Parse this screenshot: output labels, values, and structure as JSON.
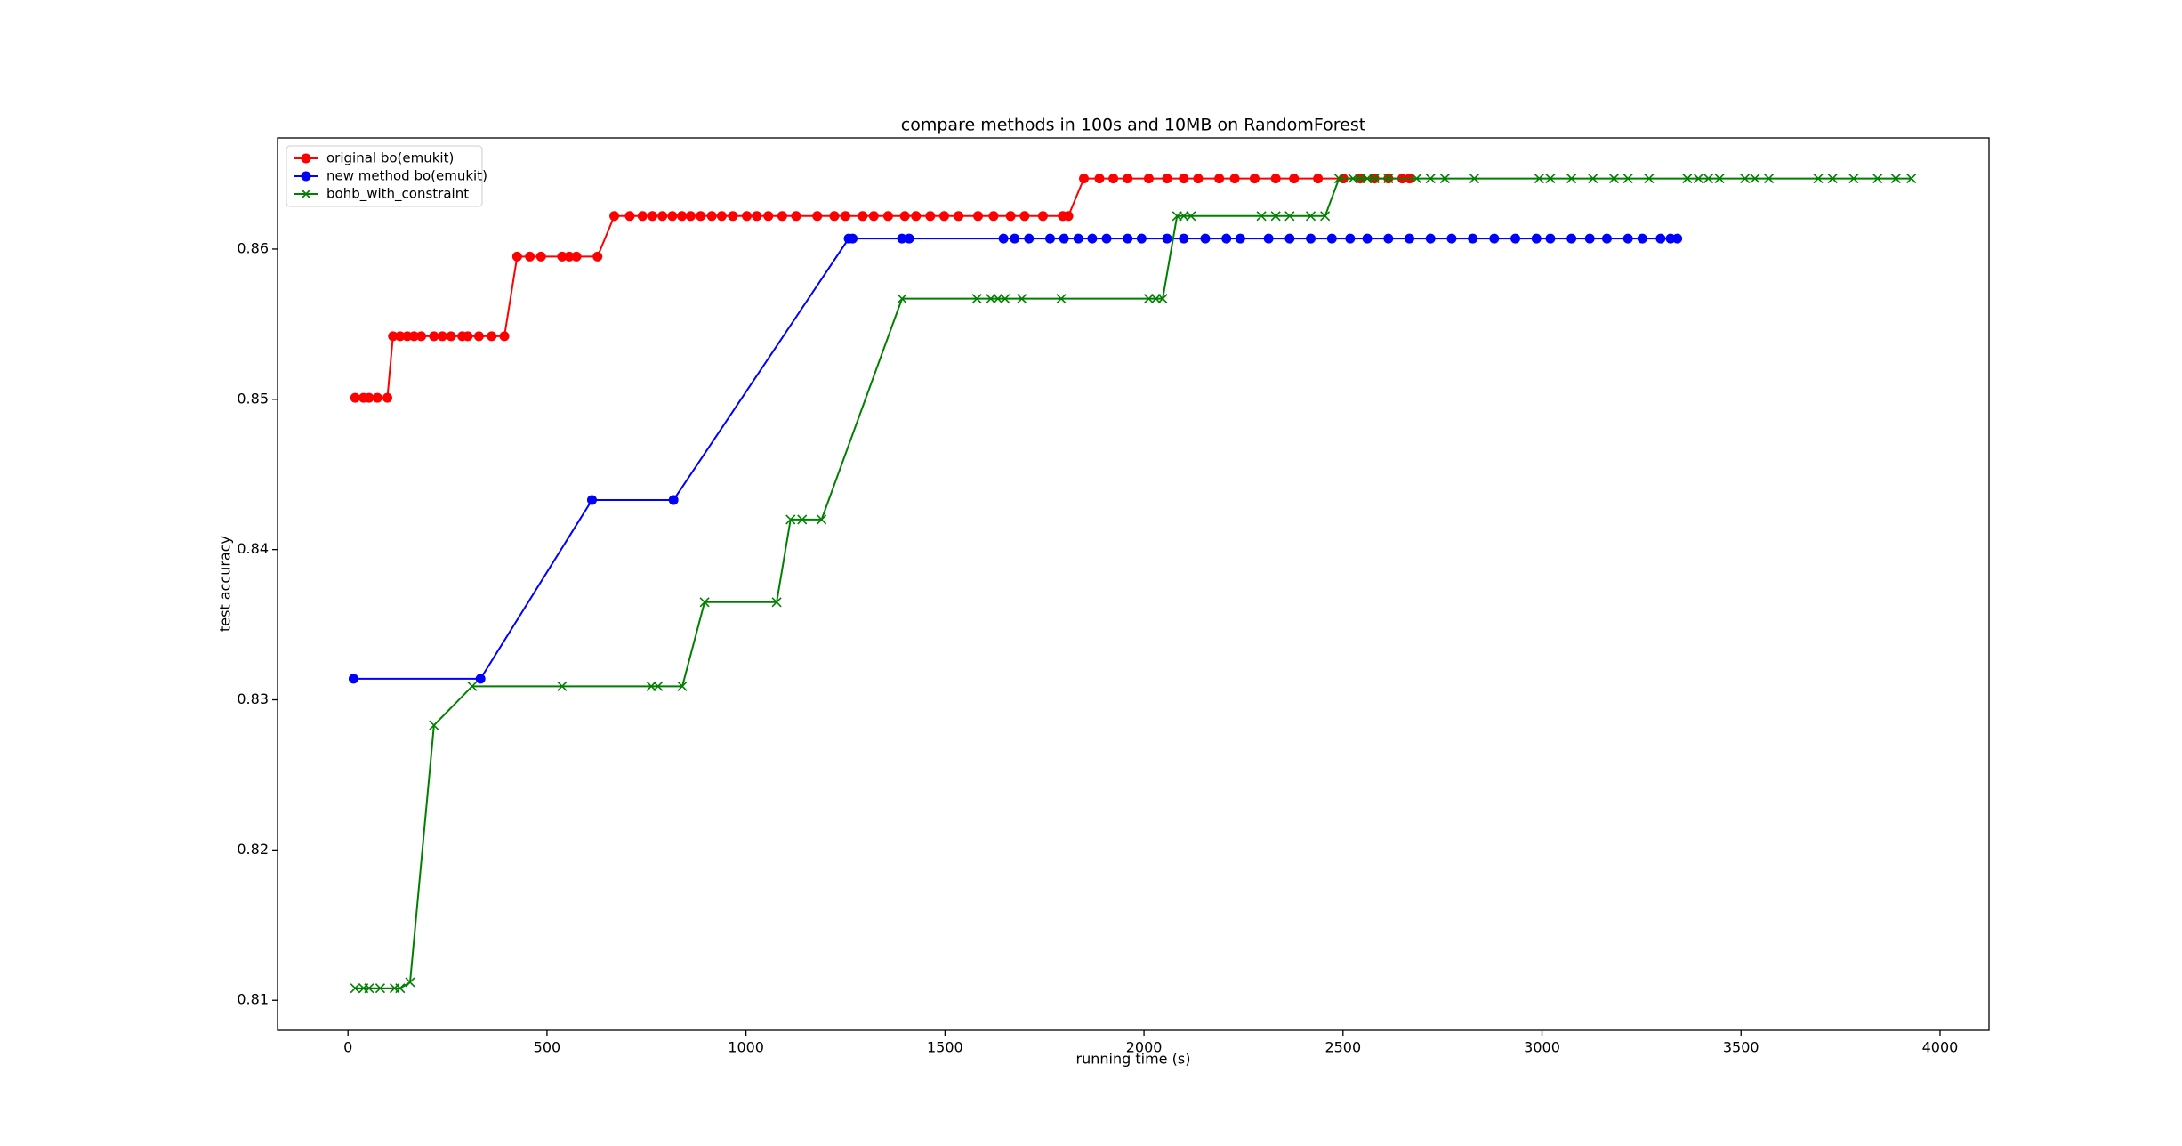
{
  "chart_data": {
    "type": "line",
    "title": "compare methods in 100s and 10MB on RandomForest",
    "xlabel": "running time (s)",
    "ylabel": "test accuracy",
    "xlim": [
      -177,
      4123
    ],
    "xticks": [
      0,
      500,
      1000,
      1500,
      2000,
      2500,
      3000,
      3500,
      4000
    ],
    "ylim": [
      0.808,
      0.8674
    ],
    "yticks": [
      0.81,
      0.82,
      0.83,
      0.84,
      0.85,
      0.86
    ],
    "legend": "upper left",
    "series": [
      {
        "name": "original bo(emukit)",
        "color": "#ff0000",
        "marker": "circle",
        "x": [
          18,
          39,
          53,
          74,
          99,
          113,
          131,
          149,
          166,
          184,
          216,
          237,
          259,
          287,
          301,
          329,
          361,
          393,
          425,
          457,
          485,
          538,
          556,
          574,
          627,
          669,
          708,
          740,
          765,
          790,
          815,
          839,
          861,
          886,
          914,
          939,
          967,
          1002,
          1027,
          1056,
          1091,
          1126,
          1179,
          1222,
          1250,
          1293,
          1321,
          1357,
          1399,
          1427,
          1463,
          1498,
          1534,
          1583,
          1622,
          1665,
          1700,
          1746,
          1796,
          1810,
          1849,
          1888,
          1923,
          1959,
          2012,
          2058,
          2100,
          2136,
          2189,
          2228,
          2278,
          2331,
          2377,
          2437,
          2501,
          2543,
          2579,
          2614,
          2649,
          2667
        ],
        "values": [
          0.8501,
          0.8501,
          0.8501,
          0.8501,
          0.8501,
          0.8542,
          0.8542,
          0.8542,
          0.8542,
          0.8542,
          0.8542,
          0.8542,
          0.8542,
          0.8542,
          0.8542,
          0.8542,
          0.8542,
          0.8542,
          0.8595,
          0.8595,
          0.8595,
          0.8595,
          0.8595,
          0.8595,
          0.8595,
          0.8622,
          0.8622,
          0.8622,
          0.8622,
          0.8622,
          0.8622,
          0.8622,
          0.8622,
          0.8622,
          0.8622,
          0.8622,
          0.8622,
          0.8622,
          0.8622,
          0.8622,
          0.8622,
          0.8622,
          0.8622,
          0.8622,
          0.8622,
          0.8622,
          0.8622,
          0.8622,
          0.8622,
          0.8622,
          0.8622,
          0.8622,
          0.8622,
          0.8622,
          0.8622,
          0.8622,
          0.8622,
          0.8622,
          0.8622,
          0.8622,
          0.8647,
          0.8647,
          0.8647,
          0.8647,
          0.8647,
          0.8647,
          0.8647,
          0.8647,
          0.8647,
          0.8647,
          0.8647,
          0.8647,
          0.8647,
          0.8647,
          0.8647,
          0.8647,
          0.8647,
          0.8647,
          0.8647,
          0.8647
        ]
      },
      {
        "name": "new method bo(emukit)",
        "color": "#0000ff",
        "marker": "circle",
        "x": [
          14,
          333,
          613,
          818,
          1258,
          1268,
          1392,
          1410,
          1647,
          1675,
          1711,
          1764,
          1799,
          1835,
          1870,
          1906,
          1959,
          1994,
          2058,
          2100,
          2154,
          2207,
          2242,
          2313,
          2366,
          2419,
          2472,
          2518,
          2561,
          2614,
          2667,
          2720,
          2773,
          2826,
          2880,
          2933,
          2986,
          3021,
          3074,
          3120,
          3163,
          3216,
          3252,
          3298,
          3323,
          3340
        ],
        "values": [
          0.8314,
          0.8314,
          0.8433,
          0.8433,
          0.8607,
          0.8607,
          0.8607,
          0.8607,
          0.8607,
          0.8607,
          0.8607,
          0.8607,
          0.8607,
          0.8607,
          0.8607,
          0.8607,
          0.8607,
          0.8607,
          0.8607,
          0.8607,
          0.8607,
          0.8607,
          0.8607,
          0.8607,
          0.8607,
          0.8607,
          0.8607,
          0.8607,
          0.8607,
          0.8607,
          0.8607,
          0.8607,
          0.8607,
          0.8607,
          0.8607,
          0.8607,
          0.8607,
          0.8607,
          0.8607,
          0.8607,
          0.8607,
          0.8607,
          0.8607,
          0.8607,
          0.8607,
          0.8607
        ]
      },
      {
        "name": "bohb_with_constraint",
        "color": "#008000",
        "marker": "x",
        "x": [
          18,
          39,
          53,
          81,
          117,
          131,
          156,
          216,
          312,
          538,
          762,
          779,
          840,
          896,
          1077,
          1112,
          1141,
          1190,
          1392,
          1580,
          1615,
          1633,
          1651,
          1693,
          1792,
          2012,
          2030,
          2047,
          2083,
          2100,
          2118,
          2295,
          2331,
          2366,
          2419,
          2455,
          2490,
          2525,
          2543,
          2561,
          2579,
          2614,
          2685,
          2720,
          2756,
          2830,
          2993,
          3021,
          3074,
          3128,
          3181,
          3216,
          3269,
          3365,
          3393,
          3418,
          3446,
          3510,
          3535,
          3570,
          3694,
          3730,
          3783,
          3843,
          3889,
          3928
        ],
        "values": [
          0.8108,
          0.8108,
          0.8108,
          0.8108,
          0.8108,
          0.8108,
          0.8112,
          0.8283,
          0.8309,
          0.8309,
          0.8309,
          0.8309,
          0.8309,
          0.8365,
          0.8365,
          0.842,
          0.842,
          0.842,
          0.8567,
          0.8567,
          0.8567,
          0.8567,
          0.8567,
          0.8567,
          0.8567,
          0.8567,
          0.8567,
          0.8567,
          0.8622,
          0.8622,
          0.8622,
          0.8622,
          0.8622,
          0.8622,
          0.8622,
          0.8622,
          0.8647,
          0.8647,
          0.8647,
          0.8647,
          0.8647,
          0.8647,
          0.8647,
          0.8647,
          0.8647,
          0.8647,
          0.8647,
          0.8647,
          0.8647,
          0.8647,
          0.8647,
          0.8647,
          0.8647,
          0.8647,
          0.8647,
          0.8647,
          0.8647,
          0.8647,
          0.8647,
          0.8647,
          0.8647,
          0.8647,
          0.8647,
          0.8647,
          0.8647,
          0.8647
        ]
      }
    ]
  }
}
